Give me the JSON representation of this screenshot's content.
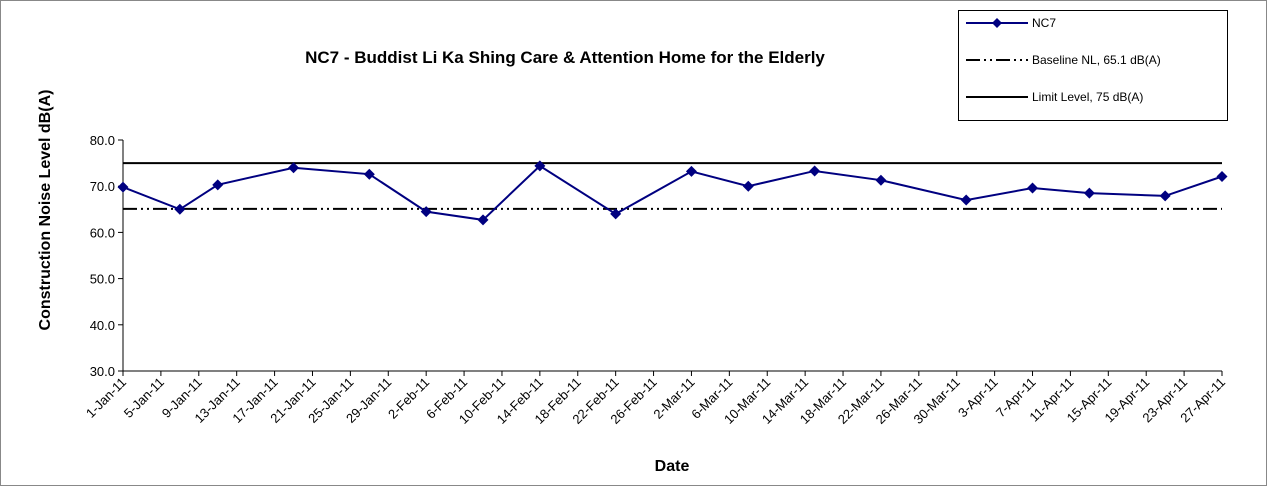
{
  "chart_data": {
    "type": "line",
    "title": "NC7 - Buddist Li Ka Shing Care & Attention Home for  the Elderly",
    "xlabel": "Date",
    "ylabel": "Construction Noise Level  dB(A)",
    "x": [
      "2011-01-01",
      "2011-01-07",
      "2011-01-11",
      "2011-01-19",
      "2011-01-27",
      "2011-02-02",
      "2011-02-08",
      "2011-02-14",
      "2011-02-22",
      "2011-03-02",
      "2011-03-08",
      "2011-03-15",
      "2011-03-22",
      "2011-03-31",
      "2011-04-07",
      "2011-04-13",
      "2011-04-21",
      "2011-04-27"
    ],
    "series": [
      {
        "name": "NC7",
        "color": "#000080",
        "values": [
          69.8,
          65.0,
          70.3,
          74.0,
          72.6,
          64.5,
          62.7,
          74.4,
          64.0,
          73.2,
          70.0,
          73.3,
          71.3,
          67.0,
          69.6,
          68.5,
          67.9,
          72.1
        ]
      }
    ],
    "reference_lines": [
      {
        "name": "Baseline NL, 65.1 dB(A)",
        "value": 65.1,
        "color": "#000000",
        "dash": "14 4 2 4 2 4"
      },
      {
        "name": "Limit Level, 75 dB(A)",
        "value": 75,
        "color": "#000000",
        "dash": "none"
      }
    ],
    "xlim": [
      "2011-01-01",
      "2011-04-27"
    ],
    "xticks": [
      {
        "value": "2011-01-01",
        "label": "1-Jan-11"
      },
      {
        "value": "2011-01-05",
        "label": "5-Jan-11"
      },
      {
        "value": "2011-01-09",
        "label": "9-Jan-11"
      },
      {
        "value": "2011-01-13",
        "label": "13-Jan-11"
      },
      {
        "value": "2011-01-17",
        "label": "17-Jan-11"
      },
      {
        "value": "2011-01-21",
        "label": "21-Jan-11"
      },
      {
        "value": "2011-01-25",
        "label": "25-Jan-11"
      },
      {
        "value": "2011-01-29",
        "label": "29-Jan-11"
      },
      {
        "value": "2011-02-02",
        "label": "2-Feb-11"
      },
      {
        "value": "2011-02-06",
        "label": "6-Feb-11"
      },
      {
        "value": "2011-02-10",
        "label": "10-Feb-11"
      },
      {
        "value": "2011-02-14",
        "label": "14-Feb-11"
      },
      {
        "value": "2011-02-18",
        "label": "18-Feb-11"
      },
      {
        "value": "2011-02-22",
        "label": "22-Feb-11"
      },
      {
        "value": "2011-02-26",
        "label": "26-Feb-11"
      },
      {
        "value": "2011-03-02",
        "label": "2-Mar-11"
      },
      {
        "value": "2011-03-06",
        "label": "6-Mar-11"
      },
      {
        "value": "2011-03-10",
        "label": "10-Mar-11"
      },
      {
        "value": "2011-03-14",
        "label": "14-Mar-11"
      },
      {
        "value": "2011-03-18",
        "label": "18-Mar-11"
      },
      {
        "value": "2011-03-22",
        "label": "22-Mar-11"
      },
      {
        "value": "2011-03-26",
        "label": "26-Mar-11"
      },
      {
        "value": "2011-03-30",
        "label": "30-Mar-11"
      },
      {
        "value": "2011-04-03",
        "label": "3-Apr-11"
      },
      {
        "value": "2011-04-07",
        "label": "7-Apr-11"
      },
      {
        "value": "2011-04-11",
        "label": "11-Apr-11"
      },
      {
        "value": "2011-04-15",
        "label": "15-Apr-11"
      },
      {
        "value": "2011-04-19",
        "label": "19-Apr-11"
      },
      {
        "value": "2011-04-23",
        "label": "23-Apr-11"
      },
      {
        "value": "2011-04-27",
        "label": "27-Apr-11"
      }
    ],
    "ylim": [
      30,
      80
    ],
    "yticks": [
      {
        "value": 30,
        "label": "30.0"
      },
      {
        "value": 40,
        "label": "40.0"
      },
      {
        "value": 50,
        "label": "50.0"
      },
      {
        "value": 60,
        "label": "60.0"
      },
      {
        "value": 70,
        "label": "70.0"
      },
      {
        "value": 80,
        "label": "80.0"
      }
    ],
    "grid": false
  }
}
